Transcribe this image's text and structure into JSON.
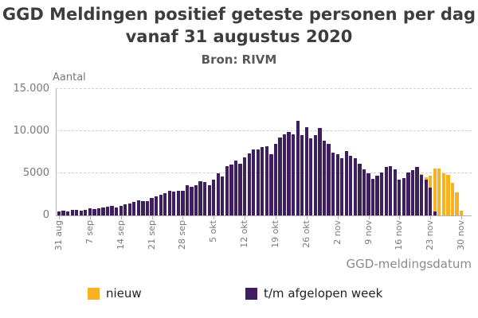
{
  "chart_data": {
    "type": "bar",
    "stacked": true,
    "title": "GGD Meldingen positief geteste personen per dag vanaf 31 augustus 2020",
    "title_line1": "GGD Meldingen positief geteste personen per dag",
    "title_line2": "vanaf 31 augustus 2020",
    "subtitle": "Bron: RIVM",
    "ylabel": "Aantal",
    "xlabel": "GGD-meldingsdatum",
    "ylim": [
      0,
      15000
    ],
    "yticks": [
      0,
      5000,
      10000,
      15000
    ],
    "ytick_labels": [
      "0",
      "5000",
      "10.000",
      "15.000"
    ],
    "grid": "dashed-horizontal",
    "xtick_labels": [
      "31 aug",
      "7 sep",
      "14 sep",
      "21 sep",
      "28 sep",
      "5 okt",
      "12 okt",
      "19 okt",
      "26 okt",
      "2 nov",
      "9 nov",
      "16 nov",
      "23 nov",
      "30 nov"
    ],
    "xtick_every_days": 7,
    "legend_position": "bottom",
    "legend": [
      {
        "label": "nieuw",
        "color": "#F7B122"
      },
      {
        "label": "t/m afgelopen week",
        "color": "#3F1E5F"
      }
    ],
    "categories": [
      "31 aug",
      "1 sep",
      "2 sep",
      "3 sep",
      "4 sep",
      "5 sep",
      "6 sep",
      "7 sep",
      "8 sep",
      "9 sep",
      "10 sep",
      "11 sep",
      "12 sep",
      "13 sep",
      "14 sep",
      "15 sep",
      "16 sep",
      "17 sep",
      "18 sep",
      "19 sep",
      "20 sep",
      "21 sep",
      "22 sep",
      "23 sep",
      "24 sep",
      "25 sep",
      "26 sep",
      "27 sep",
      "28 sep",
      "29 sep",
      "30 sep",
      "1 okt",
      "2 okt",
      "3 okt",
      "4 okt",
      "5 okt",
      "6 okt",
      "7 okt",
      "8 okt",
      "9 okt",
      "10 okt",
      "11 okt",
      "12 okt",
      "13 okt",
      "14 okt",
      "15 okt",
      "16 okt",
      "17 okt",
      "18 okt",
      "19 okt",
      "20 okt",
      "21 okt",
      "22 okt",
      "23 okt",
      "24 okt",
      "25 okt",
      "26 okt",
      "27 okt",
      "28 okt",
      "29 okt",
      "30 okt",
      "31 okt",
      "1 nov",
      "2 nov",
      "3 nov",
      "4 nov",
      "5 nov",
      "6 nov",
      "7 nov",
      "8 nov",
      "9 nov",
      "10 nov",
      "11 nov",
      "12 nov",
      "13 nov",
      "14 nov",
      "15 nov",
      "16 nov",
      "17 nov",
      "18 nov",
      "19 nov",
      "20 nov",
      "21 nov",
      "22 nov",
      "23 nov",
      "24 nov",
      "25 nov",
      "26 nov",
      "27 nov",
      "28 nov",
      "29 nov",
      "30 nov"
    ],
    "series": [
      {
        "name": "t/m afgelopen week",
        "color": "#3F1E5F",
        "values": [
          460,
          520,
          510,
          640,
          625,
          545,
          655,
          820,
          745,
          870,
          905,
          1060,
          1105,
          965,
          1165,
          1360,
          1375,
          1620,
          1820,
          1695,
          1715,
          2070,
          2225,
          2425,
          2620,
          2880,
          2855,
          2905,
          2950,
          3550,
          3370,
          3600,
          4050,
          4000,
          3580,
          4230,
          5000,
          4580,
          5830,
          6000,
          6500,
          6090,
          6850,
          7390,
          7860,
          7840,
          8140,
          8180,
          7300,
          8450,
          9280,
          9630,
          9950,
          9630,
          11250,
          9550,
          10450,
          9170,
          9500,
          10400,
          8850,
          8530,
          7500,
          7250,
          6770,
          7670,
          7060,
          6770,
          6130,
          5480,
          5000,
          4360,
          4680,
          5120,
          5750,
          5870,
          5490,
          4220,
          4470,
          5050,
          5370,
          5730,
          4800,
          4250,
          3300,
          450,
          0,
          0,
          0,
          0,
          0,
          0
        ]
      },
      {
        "name": "nieuw",
        "color": "#F7B122",
        "values": [
          0,
          0,
          0,
          0,
          0,
          0,
          0,
          0,
          0,
          0,
          0,
          0,
          0,
          0,
          0,
          0,
          0,
          0,
          0,
          0,
          0,
          0,
          0,
          0,
          0,
          0,
          0,
          0,
          0,
          0,
          0,
          0,
          0,
          0,
          0,
          0,
          0,
          0,
          0,
          0,
          0,
          0,
          0,
          0,
          0,
          0,
          0,
          0,
          0,
          0,
          0,
          0,
          0,
          0,
          0,
          0,
          0,
          0,
          0,
          0,
          0,
          0,
          0,
          0,
          0,
          0,
          0,
          0,
          0,
          0,
          0,
          0,
          0,
          0,
          0,
          0,
          0,
          0,
          0,
          0,
          0,
          0,
          100,
          300,
          1400,
          5100,
          5600,
          5000,
          4850,
          3900,
          2750,
          550
        ]
      }
    ]
  }
}
